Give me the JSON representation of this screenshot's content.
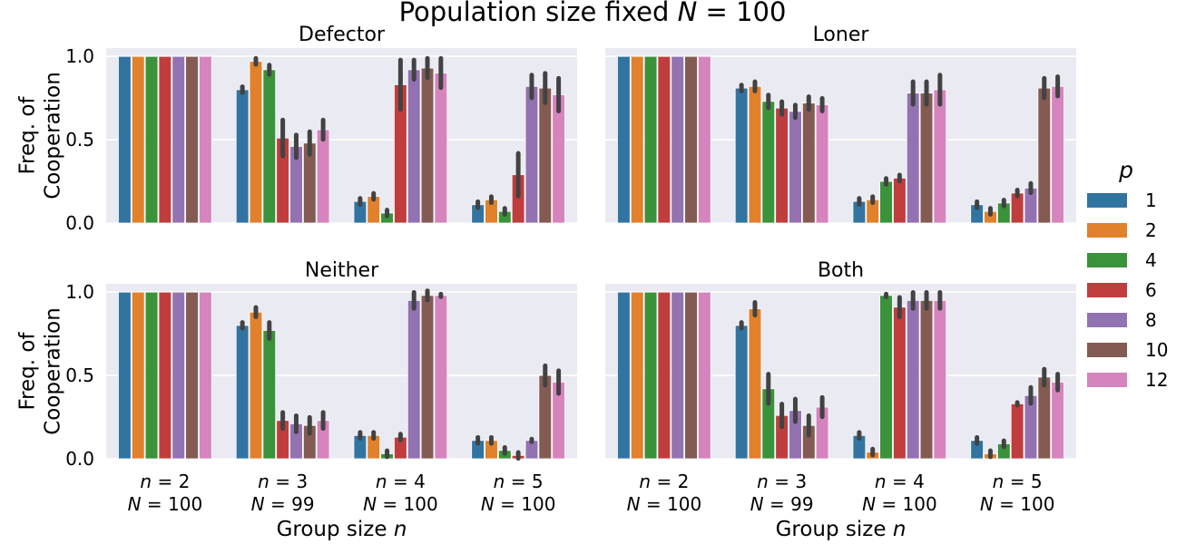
{
  "chart_data": {
    "type": "bar",
    "title": "Population size fixed N = 100",
    "title_parts": {
      "text": "Population size fixed",
      "italic": "N",
      "rest": " = 100"
    },
    "ylabel_line1": "Freq. of",
    "ylabel_line2": "Cooperation",
    "xlabel_text": "Group size",
    "xlabel_italic": "n",
    "ylim": [
      0,
      1.05
    ],
    "yticks": [
      "0.0",
      "0.5",
      "1.0"
    ],
    "ytick_values": [
      0,
      0.5,
      1.0
    ],
    "grid": "horizontal",
    "legend": {
      "title": "p",
      "placement": "right",
      "entries": [
        "1",
        "2",
        "4",
        "6",
        "8",
        "10",
        "12"
      ],
      "colors": [
        "#3274a1",
        "#e1812c",
        "#3a923a",
        "#c03d3e",
        "#9372b2",
        "#845b53",
        "#d684bd"
      ]
    },
    "categories": [
      {
        "line1_var": "n",
        "line1_val": " = 2",
        "line2_var": "N",
        "line2_val": " = 100"
      },
      {
        "line1_var": "n",
        "line1_val": " = 3",
        "line2_var": "N",
        "line2_val": " = 99"
      },
      {
        "line1_var": "n",
        "line1_val": " = 4",
        "line2_var": "N",
        "line2_val": " = 100"
      },
      {
        "line1_var": "n",
        "line1_val": " = 5",
        "line2_var": "N",
        "line2_val": " = 100"
      }
    ],
    "panels": [
      {
        "title": "Defector",
        "values": [
          [
            1.0,
            1.0,
            1.0,
            1.0,
            1.0,
            1.0,
            1.0
          ],
          [
            0.8,
            0.97,
            0.92,
            0.51,
            0.46,
            0.48,
            0.56
          ],
          [
            0.13,
            0.16,
            0.06,
            0.83,
            0.92,
            0.93,
            0.9
          ],
          [
            0.11,
            0.14,
            0.07,
            0.29,
            0.82,
            0.81,
            0.77
          ]
        ],
        "errors": [
          [
            0,
            0,
            0,
            0,
            0,
            0,
            0
          ],
          [
            0.01,
            0.01,
            0.02,
            0.1,
            0.06,
            0.06,
            0.05
          ],
          [
            0.01,
            0.01,
            0.01,
            0.14,
            0.05,
            0.05,
            0.08
          ],
          [
            0.01,
            0.01,
            0.01,
            0.12,
            0.06,
            0.08,
            0.09
          ]
        ]
      },
      {
        "title": "Loner",
        "values": [
          [
            1.0,
            1.0,
            1.0,
            1.0,
            1.0,
            1.0,
            1.0
          ],
          [
            0.81,
            0.82,
            0.73,
            0.69,
            0.67,
            0.72,
            0.71
          ],
          [
            0.13,
            0.14,
            0.25,
            0.27,
            0.78,
            0.78,
            0.8
          ],
          [
            0.11,
            0.07,
            0.12,
            0.18,
            0.21,
            0.81,
            0.82
          ]
        ],
        "errors": [
          [
            0,
            0,
            0,
            0,
            0,
            0,
            0
          ],
          [
            0.01,
            0.02,
            0.03,
            0.03,
            0.03,
            0.03,
            0.03
          ],
          [
            0.01,
            0.01,
            0.01,
            0.01,
            0.06,
            0.06,
            0.08
          ],
          [
            0.01,
            0.01,
            0.01,
            0.01,
            0.02,
            0.05,
            0.05
          ]
        ]
      },
      {
        "title": "Neither",
        "values": [
          [
            1.0,
            1.0,
            1.0,
            1.0,
            1.0,
            1.0,
            1.0
          ],
          [
            0.8,
            0.88,
            0.77,
            0.23,
            0.21,
            0.2,
            0.23
          ],
          [
            0.14,
            0.14,
            0.03,
            0.13,
            0.95,
            0.98,
            0.98
          ],
          [
            0.11,
            0.11,
            0.05,
            0.02,
            0.11,
            0.5,
            0.46
          ]
        ],
        "errors": [
          [
            0,
            0,
            0,
            0,
            0,
            0,
            0
          ],
          [
            0.01,
            0.02,
            0.04,
            0.04,
            0.04,
            0.04,
            0.04
          ],
          [
            0.01,
            0.01,
            0.01,
            0.01,
            0.04,
            0.02,
            0
          ],
          [
            0.01,
            0.01,
            0.01,
            0.01,
            0,
            0.05,
            0.06
          ]
        ]
      },
      {
        "title": "Both",
        "values": [
          [
            1.0,
            1.0,
            1.0,
            1.0,
            1.0,
            1.0,
            1.0
          ],
          [
            0.8,
            0.9,
            0.42,
            0.26,
            0.29,
            0.2,
            0.31
          ],
          [
            0.14,
            0.04,
            0.98,
            0.91,
            0.95,
            0.95,
            0.95
          ],
          [
            0.11,
            0.03,
            0.09,
            0.33,
            0.38,
            0.49,
            0.46
          ]
        ],
        "errors": [
          [
            0,
            0,
            0,
            0,
            0,
            0,
            0
          ],
          [
            0.01,
            0.03,
            0.08,
            0.06,
            0.06,
            0.05,
            0.05
          ],
          [
            0.01,
            0.01,
            0,
            0.05,
            0.04,
            0.04,
            0.04
          ],
          [
            0.01,
            0.01,
            0.01,
            0,
            0.04,
            0.04,
            0.04
          ]
        ]
      }
    ]
  }
}
